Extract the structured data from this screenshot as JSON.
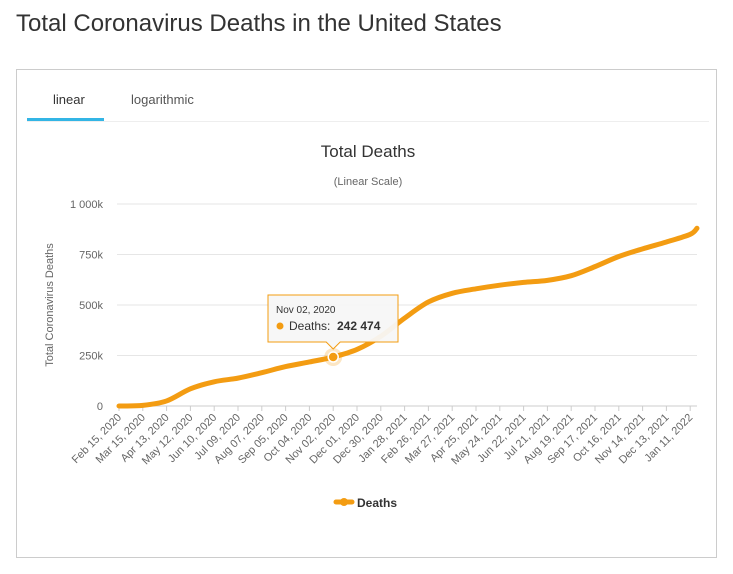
{
  "page": {
    "title": "Total Coronavirus Deaths in the United States"
  },
  "tabs": [
    {
      "label": "linear",
      "active": true
    },
    {
      "label": "logarithmic",
      "active": false
    }
  ],
  "colors": {
    "series": "#f39c12",
    "tab_underline": "#33b5e5",
    "tooltip_border": "#f39c12"
  },
  "tooltip": {
    "date": "Nov 02, 2020",
    "label": "Deaths:",
    "value": "242 474",
    "x": "Nov 02, 2020",
    "y": 242474
  },
  "legend": {
    "label": "Deaths"
  },
  "chart_data": {
    "type": "line",
    "title": "Total Deaths",
    "subtitle": "(Linear Scale)",
    "ylabel": "Total Coronavirus Deaths",
    "xlabel": "",
    "ylim": [
      0,
      1000000
    ],
    "yticks": [
      {
        "value": 0,
        "label": "0"
      },
      {
        "value": 250000,
        "label": "250k"
      },
      {
        "value": 500000,
        "label": "500k"
      },
      {
        "value": 750000,
        "label": "750k"
      },
      {
        "value": 1000000,
        "label": "1 000k"
      }
    ],
    "x_tick_labels": [
      "Feb 15, 2020",
      "Mar 15, 2020",
      "Apr 13, 2020",
      "May 12, 2020",
      "Jun 10, 2020",
      "Jul 09, 2020",
      "Aug 07, 2020",
      "Sep 05, 2020",
      "Oct 04, 2020",
      "Nov 02, 2020",
      "Dec 01, 2020",
      "Dec 30, 2020",
      "Jan 28, 2021",
      "Feb 26, 2021",
      "Mar 27, 2021",
      "Apr 25, 2021",
      "May 24, 2021",
      "Jun 22, 2021",
      "Jul 21, 2021",
      "Aug 19, 2021",
      "Sep 17, 2021",
      "Oct 16, 2021",
      "Nov 14, 2021",
      "Dec 13, 2021",
      "Jan 11, 2022"
    ],
    "grid": true,
    "legend_position": "bottom",
    "series": [
      {
        "name": "Deaths",
        "x": [
          "Feb 15, 2020",
          "Mar 15, 2020",
          "Apr 13, 2020",
          "May 12, 2020",
          "Jun 10, 2020",
          "Jul 09, 2020",
          "Aug 07, 2020",
          "Sep 05, 2020",
          "Oct 04, 2020",
          "Nov 02, 2020",
          "Dec 01, 2020",
          "Dec 30, 2020",
          "Jan 28, 2021",
          "Feb 26, 2021",
          "Mar 27, 2021",
          "Apr 25, 2021",
          "May 24, 2021",
          "Jun 22, 2021",
          "Jul 21, 2021",
          "Aug 19, 2021",
          "Sep 17, 2021",
          "Oct 16, 2021",
          "Nov 14, 2021",
          "Dec 13, 2021",
          "Jan 11, 2022",
          "Jan 24, 2022"
        ],
        "values": [
          0,
          3000,
          25000,
          85000,
          120000,
          138000,
          165000,
          195000,
          218000,
          242474,
          280000,
          345000,
          435000,
          515000,
          558000,
          580000,
          598000,
          612000,
          622000,
          645000,
          690000,
          740000,
          778000,
          812000,
          850000,
          880000
        ]
      }
    ]
  }
}
